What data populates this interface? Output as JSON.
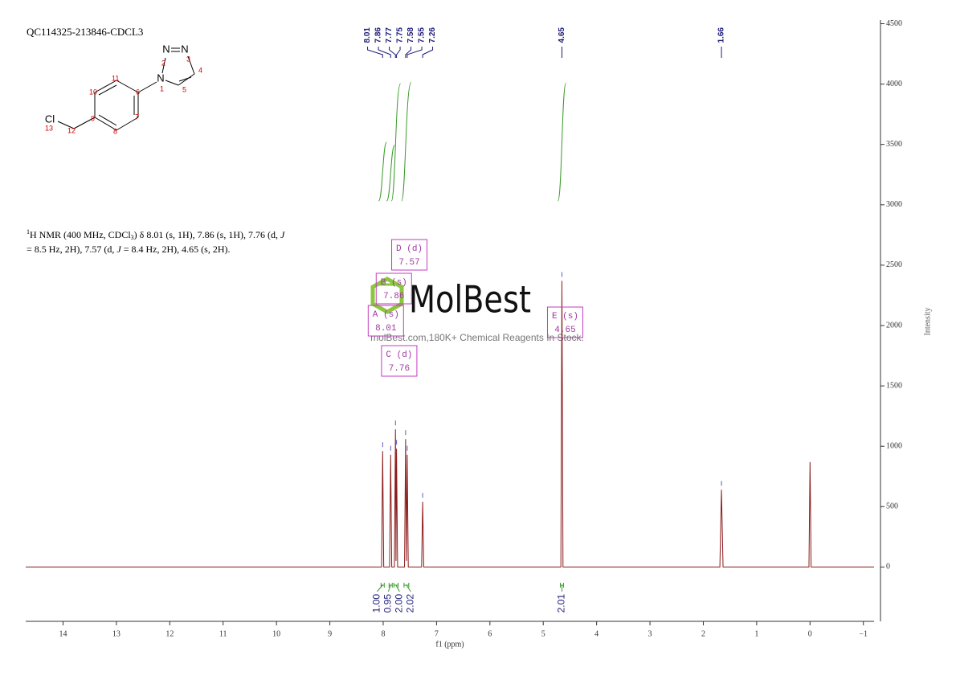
{
  "chart_data": {
    "type": "line",
    "title": "QC114325-213846-CDCL3",
    "x_label": "f1 (ppm)",
    "y_label": "Intensity",
    "xlim": [
      14.7,
      -1.2
    ],
    "xticks": [
      14,
      13,
      12,
      11,
      10,
      9,
      8,
      7,
      6,
      5,
      4,
      3,
      2,
      1,
      0,
      {
        "value": -1,
        "label": "−1"
      }
    ],
    "ylim": [
      -450,
      4530
    ],
    "yticks": [
      0,
      500,
      1000,
      1500,
      2000,
      2500,
      3000,
      3500,
      4000,
      4500
    ],
    "x": [
      14.7,
      8.03,
      8.01,
      7.99,
      7.88,
      7.86,
      7.84,
      7.79,
      7.77,
      7.76,
      7.75,
      7.73,
      7.6,
      7.58,
      7.565,
      7.55,
      7.53,
      7.28,
      7.26,
      7.24,
      4.67,
      4.65,
      4.63,
      1.69,
      1.66,
      1.63,
      0.02,
      0,
      -0.02,
      -1.2
    ],
    "series": [
      {
        "color": "#8b1a1a",
        "values": [
          0,
          0,
          960,
          0,
          0,
          930,
          0,
          0,
          1140,
          50,
          980,
          0,
          0,
          1060,
          50,
          930,
          0,
          0,
          540,
          0,
          0,
          2370,
          0,
          0,
          640,
          0,
          0,
          870,
          0,
          0
        ]
      }
    ],
    "peak_labels": [
      8.01,
      7.86,
      7.77,
      7.75,
      7.58,
      7.55,
      7.26,
      4.65,
      1.66
    ],
    "peak_label_color": "#1c1c7a",
    "integrals": {
      "ranges": [
        [
          8.04,
          7.98
        ],
        [
          7.89,
          7.83
        ],
        [
          7.8,
          7.72
        ],
        [
          7.61,
          7.52
        ],
        [
          4.68,
          4.62
        ]
      ],
      "values": [
        1,
        0.95,
        2,
        2.02,
        2.01
      ],
      "value_labels": [
        "1.00",
        "0.95",
        "2.00",
        "2.02",
        "2.01"
      ],
      "color": "#3a9a2a"
    },
    "multiplets": [
      {
        "label": "A (s)",
        "shift": 8.01
      },
      {
        "label": "B (s)",
        "shift": 7.86
      },
      {
        "label": "C (d)",
        "shift": 7.76
      },
      {
        "label": "D (d)",
        "shift": 7.57
      },
      {
        "label": "E (s)",
        "shift": 4.65
      }
    ]
  },
  "molecule": {
    "atoms": [
      "N",
      "N",
      "N",
      "Cl"
    ],
    "numbers": [
      "1",
      "2",
      "3",
      "4",
      "5",
      "6",
      "7",
      "8",
      "9",
      "10",
      "11",
      "12",
      "13"
    ]
  },
  "description": {
    "lines": [
      [
        "1",
        "H NMR (400 MHz, CDCl",
        "3",
        ") δ 8.01 (s, 1H), 7.86 (s, 1H), 7.76 (d, ",
        "J"
      ],
      [
        "= 8.5 Hz, 2H), 7.57 (d, ",
        "J",
        " = 8.4 Hz, 2H), 4.65 (s, 2H)."
      ]
    ]
  },
  "watermark": {
    "brand": "MolBest",
    "tagline": "molBest.com,180K+ Chemical Reagents In Stock."
  }
}
